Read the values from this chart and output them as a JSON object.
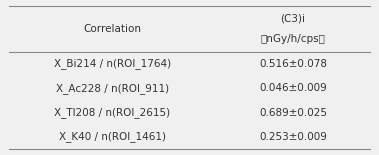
{
  "col1_header": "Correlation",
  "col2_header_line1": "(C3)i",
  "col2_header_line2": "（nGy/h/cps）",
  "rows": [
    [
      "X_Bi214 / n(ROI_1764)",
      "0.516±0.078"
    ],
    [
      "X_Ac228 / n(ROI_911)",
      "0.046±0.009"
    ],
    [
      "X_Tl208 / n(ROI_2615)",
      "0.689±0.025"
    ],
    [
      "X_K40 / n(ROI_1461)",
      "0.253±0.009"
    ]
  ],
  "bg_color": "#f0f0f0",
  "text_color": "#333333",
  "line_color": "#888888",
  "font_size": 7.5,
  "col_split": 0.57
}
